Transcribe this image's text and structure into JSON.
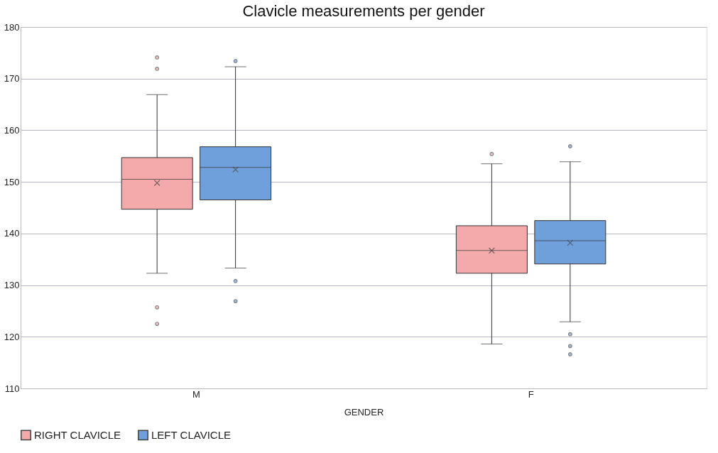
{
  "chart_data": {
    "type": "box",
    "title": "Clavicle measurements per gender",
    "xlabel": "GENDER",
    "categories": [
      "M",
      "F"
    ],
    "series": [
      {
        "name": "RIGHT CLAVICLE",
        "color": "#f4aaaa",
        "boxes": [
          {
            "low": 132.3,
            "q1": 144.7,
            "median": 150.5,
            "q3": 154.7,
            "high": 166.9,
            "mean": 149.8,
            "outliers": [
              174.1,
              171.9,
              125.7,
              122.5
            ]
          },
          {
            "low": 118.6,
            "q1": 132.3,
            "median": 136.7,
            "q3": 141.5,
            "high": 153.5,
            "mean": 136.7,
            "outliers": [
              155.4
            ]
          }
        ]
      },
      {
        "name": "LEFT CLAVICLE",
        "color": "#6fa0dc",
        "boxes": [
          {
            "low": 133.3,
            "q1": 146.5,
            "median": 152.8,
            "q3": 156.8,
            "high": 172.3,
            "mean": 152.4,
            "outliers": [
              173.4,
              130.8,
              126.9
            ]
          },
          {
            "low": 122.9,
            "q1": 134.1,
            "median": 138.6,
            "q3": 142.5,
            "high": 153.9,
            "mean": 138.2,
            "outliers": [
              156.9,
              120.5,
              118.2,
              116.6
            ]
          }
        ]
      }
    ],
    "ylim": [
      110,
      180
    ],
    "yticks": [
      110,
      120,
      130,
      140,
      150,
      160,
      170,
      180
    ],
    "grid": "y",
    "legend": "bottom",
    "marker": "circle"
  }
}
